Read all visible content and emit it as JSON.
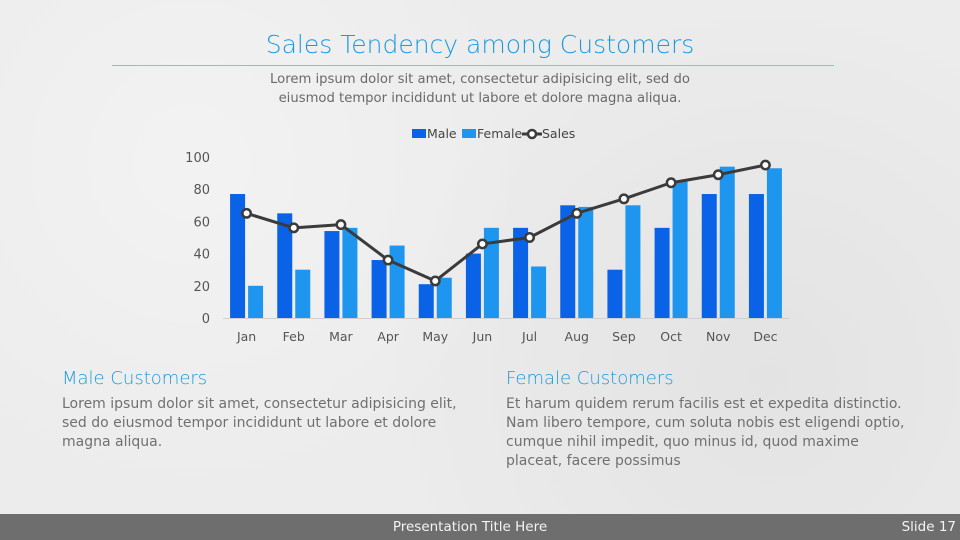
{
  "header": {
    "title": "Sales Tendency among Customers",
    "subtitle": "Lorem ipsum dolor sit amet, consectetur adipisicing elit, sed do eiusmod tempor incididunt ut labore et dolore magna aliqua."
  },
  "left_column": {
    "heading": "Male Customers",
    "body": "Lorem ipsum dolor sit amet, consectetur adipisicing elit, sed do eiusmod tempor incididunt ut labore et dolore magna aliqua."
  },
  "right_column": {
    "heading": "Female Customers",
    "body": "Et harum quidem rerum facilis est et expedita distinctio. Nam libero tempore, cum soluta nobis est eligendi optio, cumque nihil impedit, quo minus id, quod maxime placeat, facere possimus"
  },
  "footer": {
    "presentation_title": "Presentation Title Here",
    "slide_number": "Slide 17"
  },
  "colors": {
    "male": "#0a63e6",
    "female": "#1e96f0",
    "sales": "#3b3b3b",
    "accent": "#1a9ae0"
  },
  "chart_data": {
    "type": "bar",
    "title": "",
    "xlabel": "",
    "ylabel": "",
    "ylim": [
      0,
      100
    ],
    "yticks": [
      0,
      20,
      40,
      60,
      80,
      100
    ],
    "grid": false,
    "legend_position": "top-center",
    "categories": [
      "Jan",
      "Feb",
      "Mar",
      "Apr",
      "May",
      "Jun",
      "Jul",
      "Aug",
      "Sep",
      "Oct",
      "Nov",
      "Dec"
    ],
    "series": [
      {
        "name": "Male",
        "kind": "bar",
        "values": [
          77,
          65,
          54,
          36,
          21,
          40,
          56,
          70,
          30,
          56,
          77,
          77
        ]
      },
      {
        "name": "Female",
        "kind": "bar",
        "values": [
          20,
          30,
          56,
          45,
          25,
          56,
          32,
          69,
          70,
          85,
          94,
          93
        ]
      },
      {
        "name": "Sales",
        "kind": "line",
        "values": [
          65,
          56,
          58,
          36,
          23,
          46,
          50,
          65,
          74,
          84,
          89,
          95
        ]
      }
    ]
  }
}
